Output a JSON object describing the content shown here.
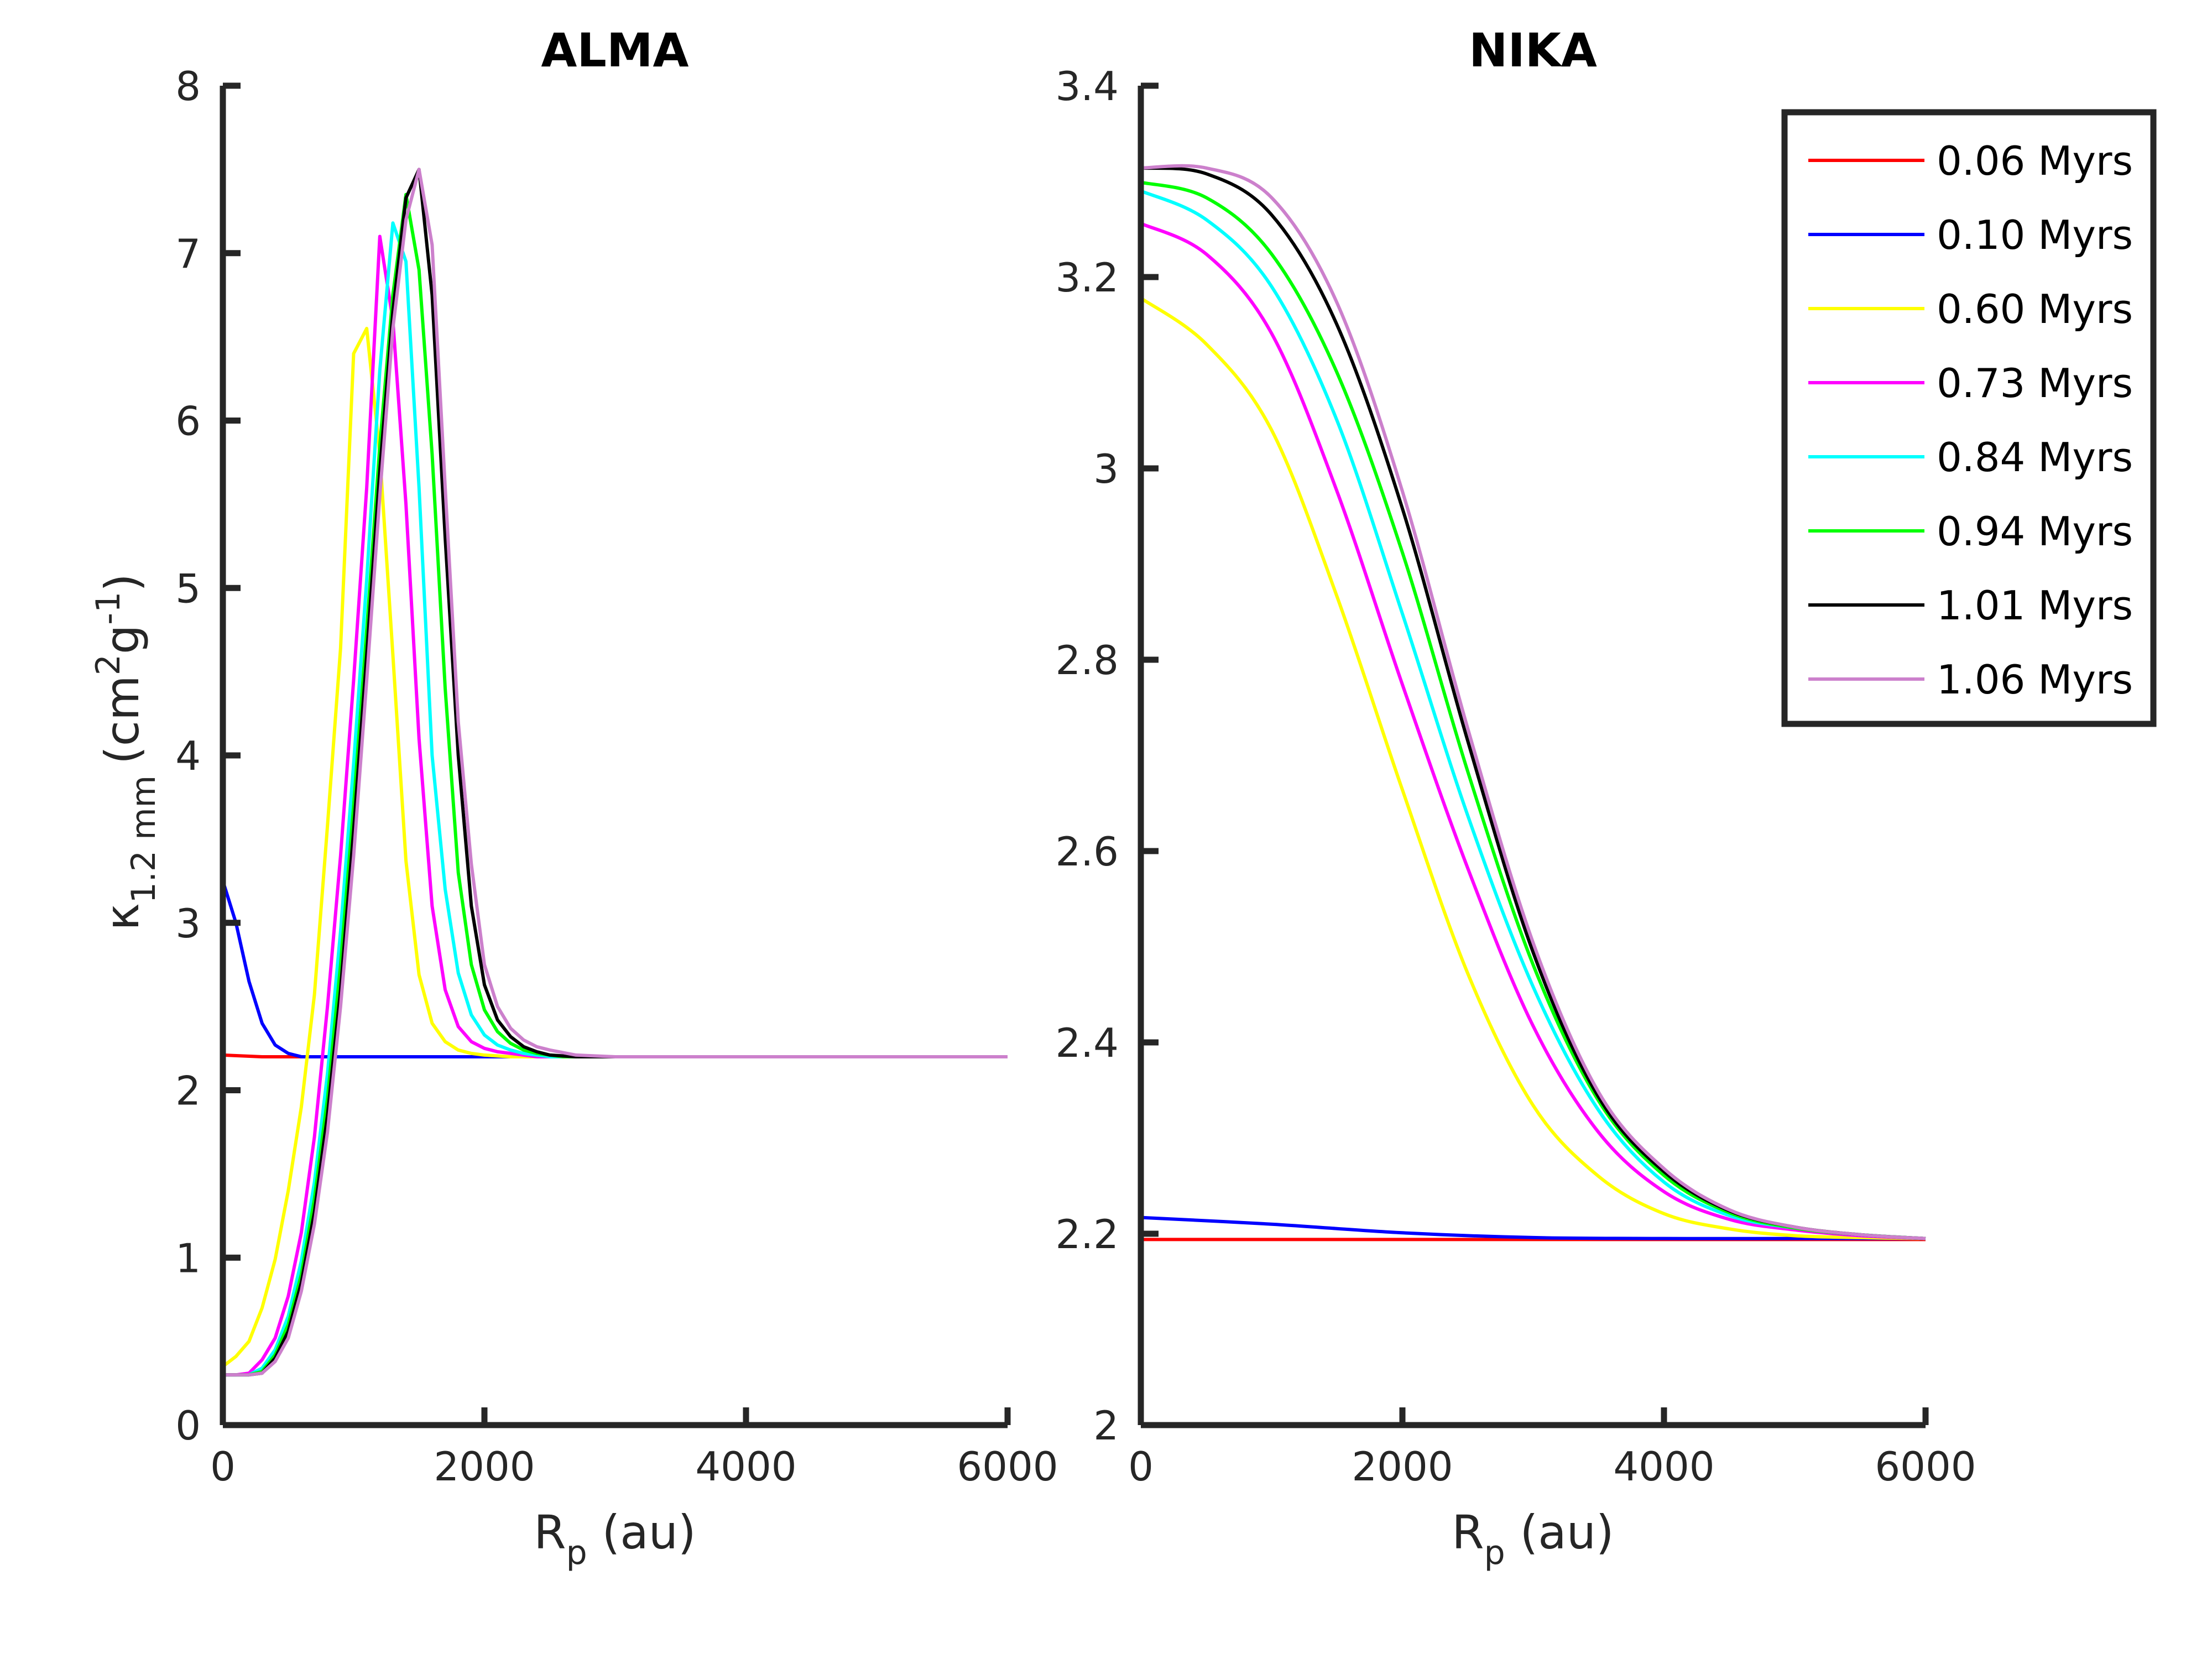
{
  "chart_data": [
    {
      "type": "line",
      "title": "ALMA",
      "xlabel": "R_p (au)",
      "ylabel": "κ_1.2 mm (cm^2 g^-1)",
      "xlim": [
        0,
        6000
      ],
      "ylim": [
        0,
        8
      ],
      "xticks": [
        0,
        2000,
        4000,
        6000
      ],
      "yticks": [
        0,
        1,
        2,
        3,
        4,
        5,
        6,
        7,
        8
      ],
      "grid": false,
      "series": [
        {
          "name": "0.06 Myrs",
          "color": "#ff0000",
          "x": [
            0,
            300,
            6000
          ],
          "y": [
            2.21,
            2.2,
            2.2
          ]
        },
        {
          "name": "0.10 Myrs",
          "color": "#0000ff",
          "x": [
            0,
            100,
            200,
            300,
            400,
            500,
            600,
            6000
          ],
          "y": [
            3.25,
            3.0,
            2.65,
            2.4,
            2.27,
            2.22,
            2.2,
            2.2
          ]
        },
        {
          "name": "0.60 Myrs",
          "color": "#ffff00",
          "x": [
            0,
            100,
            200,
            300,
            400,
            500,
            600,
            700,
            800,
            900,
            1000,
            1100,
            1200,
            1300,
            1400,
            1500,
            1600,
            1700,
            1800,
            1900,
            2000,
            2200,
            6000
          ],
          "y": [
            0.35,
            0.41,
            0.5,
            0.7,
            0.99,
            1.4,
            1.9,
            2.57,
            3.58,
            4.64,
            6.4,
            6.55,
            5.8,
            4.6,
            3.37,
            2.69,
            2.4,
            2.29,
            2.24,
            2.22,
            2.21,
            2.2,
            2.2
          ]
        },
        {
          "name": "0.73 Myrs",
          "color": "#ff00ff",
          "x": [
            0,
            100,
            200,
            300,
            400,
            500,
            600,
            700,
            800,
            900,
            1000,
            1100,
            1200,
            1300,
            1400,
            1500,
            1600,
            1700,
            1800,
            1900,
            2000,
            2100,
            2200,
            2400,
            6000
          ],
          "y": [
            0.3,
            0.3,
            0.31,
            0.39,
            0.52,
            0.77,
            1.15,
            1.72,
            2.5,
            3.4,
            4.45,
            5.6,
            7.1,
            6.6,
            5.5,
            4.1,
            3.1,
            2.6,
            2.38,
            2.29,
            2.25,
            2.23,
            2.22,
            2.2,
            2.2
          ]
        },
        {
          "name": "0.84 Myrs",
          "color": "#00ffff",
          "x": [
            0,
            100,
            200,
            300,
            400,
            500,
            600,
            700,
            800,
            900,
            1000,
            1100,
            1200,
            1300,
            1400,
            1500,
            1600,
            1700,
            1800,
            1900,
            2000,
            2100,
            2200,
            2300,
            2500,
            6000
          ],
          "y": [
            0.3,
            0.3,
            0.3,
            0.34,
            0.45,
            0.65,
            0.98,
            1.45,
            2.1,
            2.95,
            3.95,
            5.05,
            6.3,
            7.18,
            6.95,
            5.6,
            4.0,
            3.2,
            2.7,
            2.45,
            2.33,
            2.27,
            2.24,
            2.22,
            2.2,
            2.2
          ]
        },
        {
          "name": "0.94 Myrs",
          "color": "#00ff00",
          "x": [
            0,
            100,
            200,
            300,
            400,
            500,
            600,
            700,
            800,
            900,
            1000,
            1100,
            1200,
            1300,
            1400,
            1500,
            1600,
            1700,
            1800,
            1900,
            2000,
            2100,
            2200,
            2300,
            2400,
            2600,
            6000
          ],
          "y": [
            0.3,
            0.3,
            0.3,
            0.32,
            0.42,
            0.6,
            0.9,
            1.35,
            1.95,
            2.75,
            3.7,
            4.75,
            5.85,
            6.75,
            7.35,
            6.9,
            5.8,
            4.4,
            3.3,
            2.75,
            2.48,
            2.35,
            2.28,
            2.24,
            2.22,
            2.2,
            2.2
          ]
        },
        {
          "name": "1.01 Myrs",
          "color": "#000000",
          "x": [
            0,
            100,
            200,
            300,
            400,
            500,
            600,
            700,
            800,
            900,
            1000,
            1100,
            1200,
            1300,
            1400,
            1500,
            1600,
            1700,
            1800,
            1900,
            2000,
            2100,
            2200,
            2300,
            2400,
            2500,
            2700,
            6000
          ],
          "y": [
            0.3,
            0.3,
            0.3,
            0.31,
            0.4,
            0.56,
            0.85,
            1.27,
            1.85,
            2.6,
            3.55,
            4.6,
            5.7,
            6.65,
            7.33,
            7.5,
            6.75,
            5.3,
            4.0,
            3.1,
            2.63,
            2.42,
            2.32,
            2.26,
            2.23,
            2.21,
            2.2,
            2.2
          ]
        },
        {
          "name": "1.06 Myrs",
          "color": "#cc80cc",
          "x": [
            0,
            100,
            200,
            300,
            400,
            500,
            600,
            700,
            800,
            900,
            1000,
            1100,
            1200,
            1300,
            1400,
            1500,
            1600,
            1700,
            1800,
            1900,
            2000,
            2100,
            2200,
            2300,
            2400,
            2500,
            2700,
            3000,
            6000
          ],
          "y": [
            0.3,
            0.3,
            0.3,
            0.31,
            0.38,
            0.52,
            0.8,
            1.2,
            1.75,
            2.5,
            3.4,
            4.45,
            5.55,
            6.55,
            7.2,
            7.5,
            7.05,
            5.6,
            4.2,
            3.35,
            2.75,
            2.5,
            2.37,
            2.3,
            2.26,
            2.24,
            2.21,
            2.2,
            2.2
          ]
        }
      ]
    },
    {
      "type": "line",
      "title": "NIKA",
      "xlabel": "R_p (au)",
      "ylabel": "",
      "xlim": [
        0,
        6000
      ],
      "ylim": [
        2,
        3.4
      ],
      "xticks": [
        0,
        2000,
        4000,
        6000
      ],
      "yticks": [
        2,
        2.2,
        2.4,
        2.6,
        2.8,
        3,
        3.2,
        3.4
      ],
      "grid": false,
      "legend": "top-right",
      "series": [
        {
          "name": "0.06 Myrs",
          "color": "#ff0000",
          "x": [
            0,
            6000
          ],
          "y": [
            2.194,
            2.194
          ]
        },
        {
          "name": "0.10 Myrs",
          "color": "#0000ff",
          "x": [
            0,
            1000,
            2000,
            3000,
            4000,
            5000,
            6000
          ],
          "y": [
            2.217,
            2.21,
            2.201,
            2.196,
            2.195,
            2.195,
            2.195
          ]
        },
        {
          "name": "0.60 Myrs",
          "color": "#ffff00",
          "x": [
            0,
            500,
            1000,
            1500,
            2000,
            2500,
            3000,
            3500,
            4000,
            4500,
            5000,
            5500,
            6000
          ],
          "y": [
            3.178,
            3.13,
            3.04,
            2.866,
            2.664,
            2.472,
            2.334,
            2.26,
            2.221,
            2.205,
            2.198,
            2.196,
            2.195
          ]
        },
        {
          "name": "0.73 Myrs",
          "color": "#ff00ff",
          "x": [
            0,
            500,
            1000,
            1500,
            2000,
            2500,
            3000,
            3500,
            4000,
            4500,
            5000,
            5500,
            6000
          ],
          "y": [
            3.256,
            3.224,
            3.141,
            2.976,
            2.774,
            2.582,
            2.417,
            2.306,
            2.244,
            2.215,
            2.204,
            2.198,
            2.195
          ]
        },
        {
          "name": "0.84 Myrs",
          "color": "#00ffff",
          "x": [
            0,
            500,
            1000,
            1500,
            2000,
            2500,
            3000,
            3500,
            4000,
            4500,
            5000,
            5500,
            6000
          ],
          "y": [
            3.29,
            3.26,
            3.19,
            3.05,
            2.848,
            2.637,
            2.458,
            2.329,
            2.254,
            2.219,
            2.206,
            2.199,
            2.195
          ]
        },
        {
          "name": "0.94 Myrs",
          "color": "#00ff00",
          "x": [
            0,
            500,
            1000,
            1500,
            2000,
            2500,
            3000,
            3500,
            4000,
            4500,
            5000,
            5500,
            6000
          ],
          "y": [
            3.299,
            3.283,
            3.224,
            3.1,
            2.912,
            2.683,
            2.481,
            2.339,
            2.261,
            2.222,
            2.206,
            2.199,
            2.195
          ]
        },
        {
          "name": "1.01 Myrs",
          "color": "#000000",
          "x": [
            0,
            500,
            1000,
            1500,
            2000,
            2500,
            3000,
            3500,
            4000,
            4500,
            5000,
            5500,
            6000
          ],
          "y": [
            3.314,
            3.308,
            3.265,
            3.15,
            2.958,
            2.715,
            2.494,
            2.343,
            2.265,
            2.224,
            2.207,
            2.199,
            2.195
          ]
        },
        {
          "name": "1.06 Myrs",
          "color": "#cc80cc",
          "x": [
            0,
            500,
            1000,
            1500,
            2000,
            2500,
            3000,
            3500,
            4000,
            4500,
            5000,
            5500,
            6000
          ],
          "y": [
            3.314,
            3.314,
            3.283,
            3.173,
            2.976,
            2.728,
            2.504,
            2.348,
            2.268,
            2.225,
            2.207,
            2.199,
            2.195
          ]
        }
      ]
    }
  ],
  "labels": {
    "alma_title": "ALMA",
    "nika_title": "NIKA",
    "ylabel_kappa": "κ",
    "ylabel_sub": "1.2 mm",
    "ylabel_unit_open": "(cm",
    "ylabel_sup2": "2",
    "ylabel_g": "g",
    "ylabel_supm1": "-1",
    "ylabel_close": ")",
    "xlabel_R": "R",
    "xlabel_sub": "p",
    "xlabel_unit": " (au)"
  }
}
